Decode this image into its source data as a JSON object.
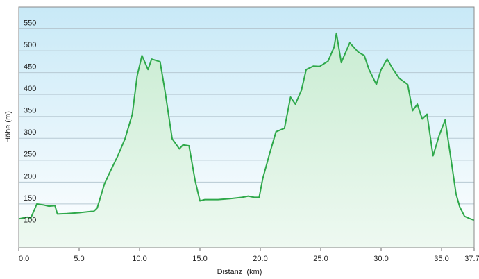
{
  "chart_data": {
    "type": "area-line",
    "x_label": "Distanz  (km)",
    "y_label": "Höhe (m)",
    "x": [
      0,
      0.7,
      1.0,
      1.5,
      2.0,
      2.5,
      3.0,
      3.2,
      4.0,
      5.0,
      6.0,
      6.2,
      6.5,
      7.1,
      7.5,
      8.2,
      8.8,
      9.4,
      9.8,
      10.2,
      10.7,
      11.0,
      11.7,
      12.1,
      12.7,
      13.3,
      13.6,
      14.1,
      14.6,
      15.0,
      15.4,
      16.5,
      17.5,
      18.5,
      19.0,
      19.5,
      19.9,
      20.2,
      20.8,
      21.3,
      22.0,
      22.5,
      22.9,
      23.4,
      23.8,
      24.4,
      24.9,
      25.6,
      26.1,
      26.3,
      26.7,
      27.4,
      28.1,
      28.6,
      29.0,
      29.6,
      30.0,
      30.5,
      31.0,
      31.5,
      32.2,
      32.6,
      33.0,
      33.4,
      33.8,
      34.3,
      34.8,
      35.3,
      35.7,
      36.2,
      36.5,
      36.9,
      37.3,
      37.7
    ],
    "values": [
      116,
      120,
      118,
      150,
      148,
      145,
      146,
      127,
      128,
      130,
      133,
      133,
      141,
      196,
      220,
      260,
      299,
      355,
      442,
      489,
      457,
      481,
      475,
      410,
      299,
      276,
      285,
      283,
      204,
      157,
      160,
      160,
      162,
      165,
      168,
      165,
      165,
      208,
      268,
      315,
      323,
      394,
      378,
      410,
      457,
      465,
      464,
      476,
      508,
      540,
      473,
      518,
      497,
      489,
      457,
      423,
      457,
      481,
      457,
      437,
      423,
      363,
      378,
      344,
      355,
      260,
      306,
      342,
      268,
      173,
      144,
      122,
      117,
      113
    ],
    "color": "#2ea84a",
    "xlim": [
      0,
      37.7
    ],
    "ylim": [
      50,
      600
    ],
    "xticks": [
      {
        "value": 0,
        "label": "0.0"
      },
      {
        "value": 5,
        "label": "5.0"
      },
      {
        "value": 10,
        "label": "10.0"
      },
      {
        "value": 15,
        "label": "15.0"
      },
      {
        "value": 20,
        "label": "20.0"
      },
      {
        "value": 25,
        "label": "25.0"
      },
      {
        "value": 30,
        "label": "30.0"
      },
      {
        "value": 35,
        "label": "35.0"
      },
      37.7
    ],
    "yticks": [
      100,
      150,
      200,
      250,
      300,
      350,
      400,
      450,
      500,
      550
    ],
    "grid": true
  }
}
